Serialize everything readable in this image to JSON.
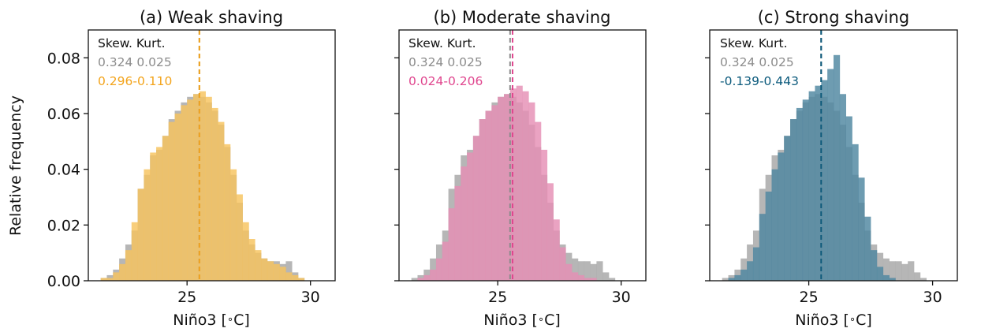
{
  "chart_data": [
    {
      "type": "bar",
      "title": "(a) Weak shaving",
      "xlabel": "Niño3 [$^\\circ$C]",
      "ylabel": "Relative frequency",
      "xlim": [
        21.0,
        31.0
      ],
      "ylim": [
        0,
        0.09
      ],
      "xticks": [
        "25",
        "30"
      ],
      "yticks": [
        "0.00",
        "0.02",
        "0.04",
        "0.06",
        "0.08"
      ],
      "stats_header": "Skew. Kurt.",
      "reference": {
        "skew": "0.324",
        "kurt": "0.025",
        "color": "#8c8c8c",
        "mean": 25.5
      },
      "experiment": {
        "skew": "0.296",
        "kurt": "-0.110",
        "color": "#f3a41c",
        "fill": "#f6c35e",
        "mean": 25.5
      },
      "bin_edges": [
        21.5,
        21.75,
        22.0,
        22.25,
        22.5,
        22.75,
        23.0,
        23.25,
        23.5,
        23.75,
        24.0,
        24.25,
        24.5,
        24.75,
        25.0,
        25.25,
        25.5,
        25.75,
        26.0,
        26.25,
        26.5,
        26.75,
        27.0,
        27.25,
        27.5,
        27.75,
        28.0,
        28.25,
        28.5,
        28.75,
        29.0,
        29.25,
        29.5,
        29.75,
        30.0
      ],
      "series": [
        {
          "name": "0.324 0.025",
          "values": [
            0.001,
            0.002,
            0.004,
            0.008,
            0.013,
            0.018,
            0.033,
            0.038,
            0.045,
            0.047,
            0.052,
            0.058,
            0.061,
            0.064,
            0.066,
            0.067,
            0.066,
            0.064,
            0.061,
            0.056,
            0.048,
            0.038,
            0.028,
            0.018,
            0.013,
            0.01,
            0.008,
            0.007,
            0.007,
            0.006,
            0.007,
            0.003,
            0.001,
            0.0
          ]
        },
        {
          "name": "0.296-0.110",
          "values": [
            0.001,
            0.001,
            0.003,
            0.006,
            0.011,
            0.021,
            0.033,
            0.04,
            0.046,
            0.048,
            0.052,
            0.057,
            0.06,
            0.063,
            0.065,
            0.067,
            0.068,
            0.066,
            0.062,
            0.057,
            0.049,
            0.04,
            0.031,
            0.021,
            0.015,
            0.011,
            0.008,
            0.007,
            0.006,
            0.005,
            0.003,
            0.002,
            0.001,
            0.0
          ]
        }
      ]
    },
    {
      "type": "bar",
      "title": "(b) Moderate shaving",
      "xlabel": "Niño3 [$^\\circ$C]",
      "xlim": [
        21.0,
        31.0
      ],
      "ylim": [
        0,
        0.09
      ],
      "xticks": [
        "25",
        "30"
      ],
      "stats_header": "Skew. Kurt.",
      "reference": {
        "skew": "0.324",
        "kurt": "0.025",
        "color": "#8c8c8c",
        "mean": 25.5
      },
      "experiment": {
        "skew": "0.024",
        "kurt": "-0.206",
        "color": "#e0478f",
        "fill": "#e58fb4",
        "mean": 25.6
      },
      "bin_edges": [
        21.5,
        21.75,
        22.0,
        22.25,
        22.5,
        22.75,
        23.0,
        23.25,
        23.5,
        23.75,
        24.0,
        24.25,
        24.5,
        24.75,
        25.0,
        25.25,
        25.5,
        25.75,
        26.0,
        26.25,
        26.5,
        26.75,
        27.0,
        27.25,
        27.5,
        27.75,
        28.0,
        28.25,
        28.5,
        28.75,
        29.0,
        29.25,
        29.5,
        29.75,
        30.0
      ],
      "series": [
        {
          "name": "0.324 0.025",
          "values": [
            0.001,
            0.002,
            0.004,
            0.008,
            0.013,
            0.018,
            0.033,
            0.038,
            0.045,
            0.047,
            0.052,
            0.058,
            0.061,
            0.064,
            0.066,
            0.067,
            0.066,
            0.064,
            0.061,
            0.056,
            0.048,
            0.038,
            0.028,
            0.018,
            0.013,
            0.01,
            0.008,
            0.007,
            0.007,
            0.006,
            0.007,
            0.003,
            0.001,
            0.0
          ]
        },
        {
          "name": "0.024-0.206",
          "values": [
            0.0,
            0.001,
            0.002,
            0.004,
            0.008,
            0.014,
            0.026,
            0.034,
            0.041,
            0.046,
            0.052,
            0.058,
            0.061,
            0.063,
            0.066,
            0.067,
            0.069,
            0.07,
            0.068,
            0.064,
            0.057,
            0.047,
            0.035,
            0.022,
            0.012,
            0.006,
            0.003,
            0.002,
            0.001,
            0.001,
            0.0,
            0.0,
            0.0,
            0.0
          ]
        }
      ]
    },
    {
      "type": "bar",
      "title": "(c) Strong shaving",
      "xlabel": "Niño3 [$^\\circ$C]",
      "xlim": [
        21.0,
        31.0
      ],
      "ylim": [
        0,
        0.09
      ],
      "xticks": [
        "25",
        "30"
      ],
      "stats_header": "Skew. Kurt.",
      "reference": {
        "skew": "0.324",
        "kurt": "0.025",
        "color": "#8c8c8c",
        "mean": 25.5
      },
      "experiment": {
        "skew": "-0.139",
        "kurt": "-0.443",
        "color": "#0b5a7c",
        "fill": "#4e86a0",
        "mean": 25.5
      },
      "bin_edges": [
        21.5,
        21.75,
        22.0,
        22.25,
        22.5,
        22.75,
        23.0,
        23.25,
        23.5,
        23.75,
        24.0,
        24.25,
        24.5,
        24.75,
        25.0,
        25.25,
        25.5,
        25.75,
        26.0,
        26.25,
        26.5,
        26.75,
        27.0,
        27.25,
        27.5,
        27.75,
        28.0,
        28.25,
        28.5,
        28.75,
        29.0,
        29.25,
        29.5,
        29.75,
        30.0
      ],
      "series": [
        {
          "name": "0.324 0.025",
          "values": [
            0.001,
            0.002,
            0.004,
            0.008,
            0.013,
            0.018,
            0.033,
            0.038,
            0.045,
            0.047,
            0.052,
            0.058,
            0.061,
            0.064,
            0.066,
            0.067,
            0.066,
            0.064,
            0.061,
            0.056,
            0.048,
            0.038,
            0.028,
            0.018,
            0.013,
            0.01,
            0.008,
            0.007,
            0.007,
            0.006,
            0.007,
            0.003,
            0.001,
            0.0
          ]
        },
        {
          "name": "-0.139-0.443",
          "values": [
            0.0,
            0.001,
            0.002,
            0.004,
            0.007,
            0.012,
            0.024,
            0.032,
            0.04,
            0.046,
            0.052,
            0.058,
            0.062,
            0.065,
            0.068,
            0.07,
            0.072,
            0.076,
            0.081,
            0.067,
            0.059,
            0.049,
            0.037,
            0.023,
            0.011,
            0.005,
            0.002,
            0.001,
            0.0,
            0.0,
            0.0,
            0.0,
            0.0,
            0.0
          ]
        }
      ]
    }
  ]
}
